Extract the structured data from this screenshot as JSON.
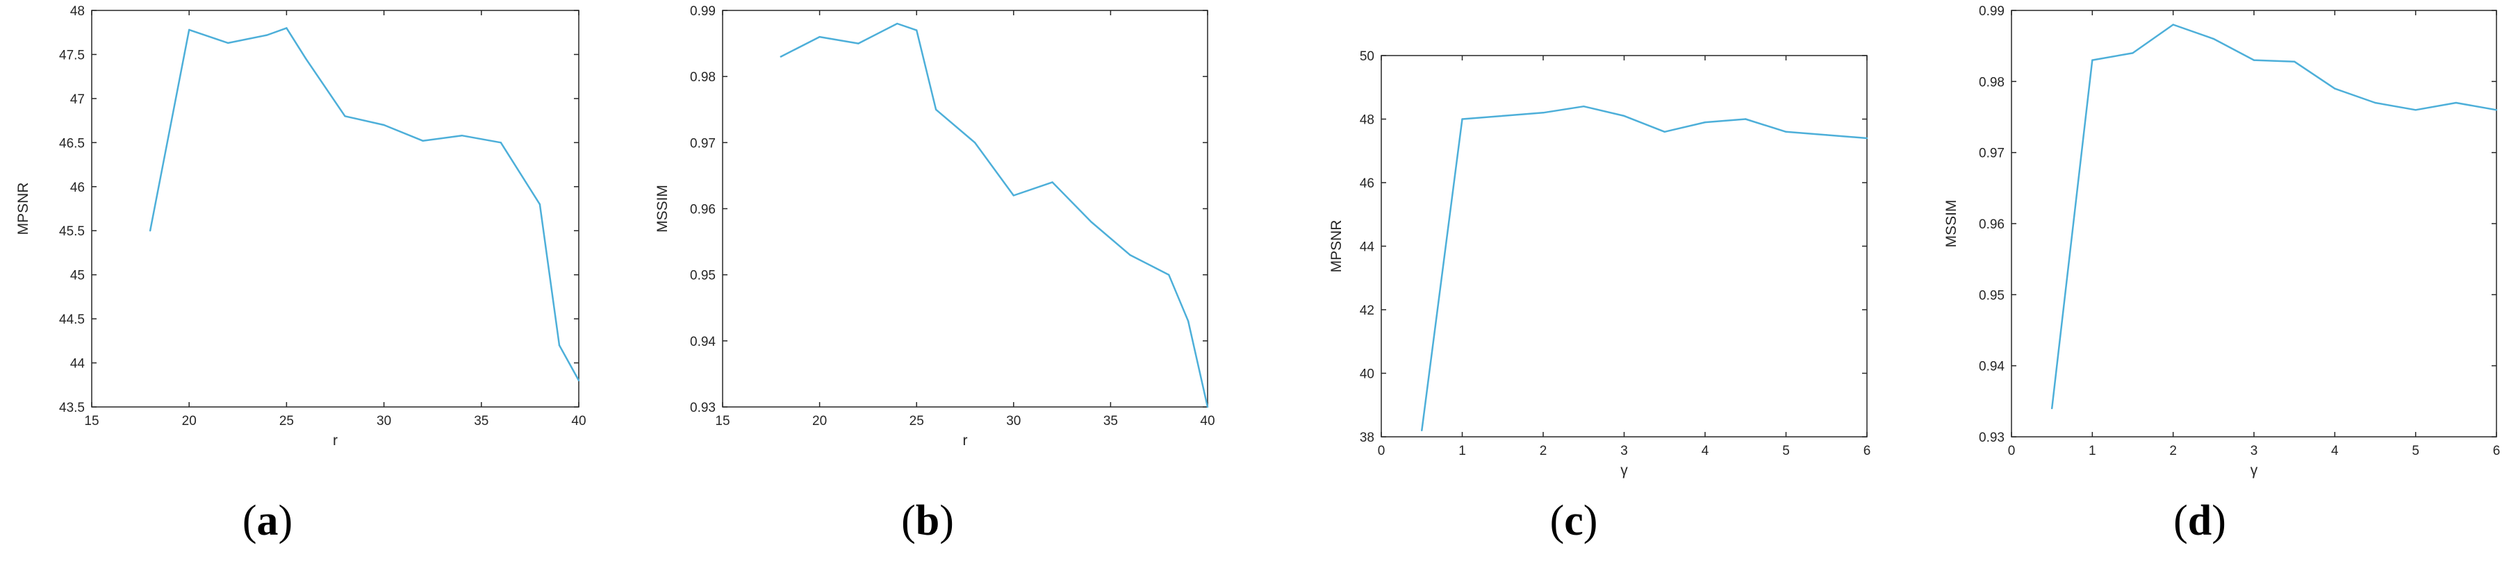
{
  "chart_data": [
    {
      "type": "line",
      "caption_letter": "a",
      "xlabel": "r",
      "ylabel": "MPSNR",
      "xlim": [
        15,
        40
      ],
      "ylim": [
        43.5,
        48
      ],
      "xticks": [
        "15",
        "20",
        "25",
        "30",
        "35",
        "40"
      ],
      "yticks": [
        "43.5",
        "44",
        "44.5",
        "45",
        "45.5",
        "46",
        "46.5",
        "47",
        "47.5",
        "48"
      ],
      "grid": false,
      "line_color": "#4DAFD9",
      "series": [
        {
          "x": [
            18,
            20,
            22,
            24,
            25,
            26,
            28,
            30,
            32,
            34,
            36,
            38,
            39,
            40
          ],
          "y": [
            45.5,
            47.78,
            47.63,
            47.72,
            47.8,
            47.45,
            46.8,
            46.7,
            46.52,
            46.58,
            46.5,
            45.8,
            44.2,
            43.8
          ]
        }
      ]
    },
    {
      "type": "line",
      "caption_letter": "b",
      "xlabel": "r",
      "ylabel": "MSSIM",
      "xlim": [
        15,
        40
      ],
      "ylim": [
        0.93,
        0.99
      ],
      "xticks": [
        "15",
        "20",
        "25",
        "30",
        "35",
        "40"
      ],
      "yticks": [
        "0.93",
        "0.94",
        "0.95",
        "0.96",
        "0.97",
        "0.98",
        "0.99"
      ],
      "grid": false,
      "line_color": "#4DAFD9",
      "series": [
        {
          "x": [
            18,
            20,
            22,
            24,
            25,
            26,
            28,
            30,
            32,
            34,
            36,
            38,
            39,
            40
          ],
          "y": [
            0.983,
            0.986,
            0.985,
            0.988,
            0.987,
            0.975,
            0.97,
            0.962,
            0.964,
            0.958,
            0.953,
            0.95,
            0.943,
            0.93
          ]
        }
      ]
    },
    {
      "type": "line",
      "caption_letter": "c",
      "xlabel": "γ",
      "ylabel": "MPSNR",
      "xlim": [
        0,
        6
      ],
      "ylim": [
        38,
        50
      ],
      "xticks": [
        "0",
        "1",
        "2",
        "3",
        "4",
        "5",
        "6"
      ],
      "yticks": [
        "38",
        "40",
        "42",
        "44",
        "46",
        "48",
        "50"
      ],
      "grid": false,
      "line_color": "#4DAFD9",
      "series": [
        {
          "x": [
            0.5,
            1,
            1.5,
            2,
            2.5,
            3,
            3.5,
            4,
            4.5,
            5,
            5.5,
            6
          ],
          "y": [
            38.2,
            48.0,
            48.1,
            48.2,
            48.4,
            48.1,
            47.6,
            47.9,
            48.0,
            47.6,
            47.5,
            47.4
          ]
        }
      ]
    },
    {
      "type": "line",
      "caption_letter": "d",
      "xlabel": "γ",
      "ylabel": "MSSIM",
      "xlim": [
        0,
        6
      ],
      "ylim": [
        0.93,
        0.99
      ],
      "xticks": [
        "0",
        "1",
        "2",
        "3",
        "4",
        "5",
        "6"
      ],
      "yticks": [
        "0.93",
        "0.94",
        "0.95",
        "0.96",
        "0.97",
        "0.98",
        "0.99"
      ],
      "grid": false,
      "line_color": "#4DAFD9",
      "series": [
        {
          "x": [
            0.5,
            1,
            1.5,
            2,
            2.5,
            3,
            3.5,
            4,
            4.5,
            5,
            5.5,
            6
          ],
          "y": [
            0.934,
            0.983,
            0.984,
            0.988,
            0.986,
            0.983,
            0.9828,
            0.979,
            0.977,
            0.976,
            0.977,
            0.976
          ]
        }
      ]
    }
  ]
}
